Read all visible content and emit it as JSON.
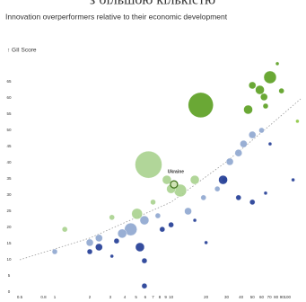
{
  "header_fragment": "з більшою кількістю",
  "chart_data": {
    "type": "bubble",
    "title": "Innovation overperformers relative to their economic development",
    "y_label": "↑ GII Score",
    "xlim": [
      0.5,
      130
    ],
    "ylim": [
      0,
      75
    ],
    "log_x": true,
    "grid": false,
    "xticks": [
      0.5,
      0.8,
      1,
      2,
      3,
      4,
      5,
      6,
      7,
      8,
      9,
      10,
      20,
      30,
      40,
      50,
      60,
      70,
      80,
      90,
      100
    ],
    "yticks": [
      0,
      5,
      10,
      15,
      20,
      25,
      30,
      35,
      40,
      45,
      50,
      55,
      60,
      65
    ],
    "x": [
      18,
      71,
      46,
      58,
      63,
      50,
      82,
      89,
      65,
      122,
      6.4,
      12,
      16,
      5.1,
      9.2,
      10,
      1.22,
      3.1,
      7.0,
      4.5,
      3.8,
      5.9,
      2.4,
      2.0,
      1.0,
      14,
      19,
      25,
      32,
      38,
      42,
      50,
      60,
      29,
      7.7,
      5.4,
      5.9,
      2.4,
      3.4,
      28,
      38,
      8.4,
      10,
      5.9,
      71,
      112,
      50,
      65,
      20,
      16,
      2.0,
      3.1
    ],
    "values": [
      57.8,
      66.4,
      56.4,
      62.5,
      60.3,
      63.9,
      70.6,
      62.2,
      57.5,
      52.8,
      39.4,
      31.4,
      34.7,
      24.2,
      34.7,
      31.9,
      19.4,
      23.1,
      27.8,
      19.4,
      18.1,
      22.2,
      16.7,
      15.3,
      12.5,
      25,
      29.2,
      31.9,
      40.3,
      43,
      45.8,
      48.6,
      50,
      34.7,
      23.6,
      13.9,
      9.7,
      13.9,
      15.8,
      34.7,
      29.2,
      19.4,
      20.8,
      1.9,
      45.8,
      34.7,
      27.8,
      30.6,
      15.3,
      22.2,
      12.5,
      11.1
    ],
    "sizes": [
      14,
      7,
      5,
      5,
      4,
      4,
      2,
      3,
      3,
      2,
      15,
      7,
      5,
      6,
      5,
      5,
      3,
      3,
      3,
      7,
      5,
      5,
      4,
      4,
      3,
      4,
      3,
      3,
      4,
      4,
      4,
      4,
      3,
      3,
      3,
      5,
      3,
      4,
      3,
      5,
      3,
      3,
      3,
      3,
      2,
      2,
      3,
      2,
      2,
      2,
      3,
      2
    ],
    "colors": [
      "#5a9e1f",
      "#5a9e1f",
      "#5a9e1f",
      "#5a9e1f",
      "#5a9e1f",
      "#5a9e1f",
      "#5a9e1f",
      "#5a9e1f",
      "#5a9e1f",
      "#8cc63f",
      "#a9d18e",
      "#a9d18e",
      "#a9d18e",
      "#a9d18e",
      "#a9d18e",
      "#a9d18e",
      "#a9d18e",
      "#a9d18e",
      "#a9d18e",
      "#8ea6cf",
      "#8ea6cf",
      "#8ea6cf",
      "#8ea6cf",
      "#8ea6cf",
      "#8ea6cf",
      "#8ea6cf",
      "#8ea6cf",
      "#8ea6cf",
      "#8ea6cf",
      "#8ea6cf",
      "#8ea6cf",
      "#8ea6cf",
      "#8ea6cf",
      "#8ea6cf",
      "#8ea6cf",
      "#1f3a93",
      "#1f3a93",
      "#1f3a93",
      "#1f3a93",
      "#1f3a93",
      "#1f3a93",
      "#1f3a93",
      "#1f3a93",
      "#1f3a93",
      "#1f3a93",
      "#1f3a93",
      "#1f3a93",
      "#1f3a93",
      "#1f3a93",
      "#1f3a93",
      "#1f3a93",
      "#1f3a93"
    ],
    "trendline": {
      "x": [
        0.5,
        2,
        10,
        30,
        70,
        130
      ],
      "values": [
        10,
        16.7,
        27.8,
        40.3,
        51.4,
        59.7
      ],
      "color": "#999999"
    },
    "annotation": {
      "text": "Ukraine",
      "x": 10.6,
      "y": 33.3
    }
  }
}
